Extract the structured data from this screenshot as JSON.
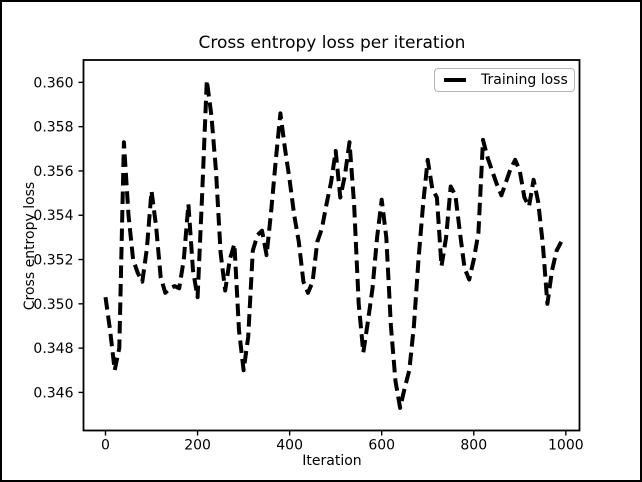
{
  "chart_data": {
    "type": "line",
    "title": "Cross entropy loss per iteration",
    "xlabel": "Iteration",
    "ylabel": "Cross entropy loss",
    "grid": false,
    "xlim": [
      -47.8,
      1029.7
    ],
    "ylim": [
      0.34428,
      0.36101
    ],
    "xticks": [
      0,
      200,
      400,
      600,
      800,
      1000
    ],
    "yticks": [
      0.346,
      0.348,
      0.35,
      0.352,
      0.354,
      0.356,
      0.358,
      0.36
    ],
    "ytick_decimals": 3,
    "legend": {
      "label": "Training loss",
      "position": "upper right"
    },
    "line_color": "#000000",
    "line_style": "dashed",
    "line_width": 4,
    "background_color": "#ffffff",
    "spine_color": "#000000",
    "series": [
      {
        "name": "Training loss",
        "x": [
          0,
          10,
          20,
          30,
          40,
          50,
          60,
          70,
          80,
          90,
          100,
          110,
          120,
          130,
          140,
          150,
          160,
          170,
          180,
          190,
          200,
          210,
          220,
          230,
          240,
          250,
          260,
          270,
          280,
          290,
          300,
          310,
          320,
          330,
          340,
          350,
          360,
          370,
          380,
          390,
          400,
          410,
          420,
          430,
          440,
          450,
          460,
          470,
          480,
          490,
          500,
          510,
          520,
          530,
          540,
          550,
          560,
          570,
          580,
          590,
          600,
          610,
          620,
          630,
          640,
          650,
          660,
          670,
          680,
          690,
          700,
          710,
          720,
          730,
          740,
          750,
          760,
          770,
          780,
          790,
          800,
          810,
          820,
          830,
          840,
          850,
          860,
          870,
          880,
          890,
          900,
          910,
          920,
          930,
          940,
          950,
          960,
          970,
          980,
          990
        ],
        "y": [
          0.3503,
          0.3488,
          0.347,
          0.348,
          0.3573,
          0.354,
          0.352,
          0.3514,
          0.351,
          0.3525,
          0.3551,
          0.3535,
          0.3512,
          0.3505,
          0.3507,
          0.3508,
          0.3507,
          0.352,
          0.3545,
          0.3515,
          0.3503,
          0.355,
          0.3601,
          0.3585,
          0.356,
          0.3523,
          0.3506,
          0.352,
          0.3527,
          0.3488,
          0.347,
          0.3485,
          0.3524,
          0.3531,
          0.3533,
          0.3522,
          0.3542,
          0.3565,
          0.3586,
          0.357,
          0.3556,
          0.354,
          0.3528,
          0.351,
          0.3505,
          0.351,
          0.3528,
          0.3534,
          0.3545,
          0.3555,
          0.3569,
          0.3548,
          0.3558,
          0.3573,
          0.3545,
          0.35,
          0.3478,
          0.3492,
          0.3507,
          0.353,
          0.3547,
          0.353,
          0.349,
          0.3465,
          0.3453,
          0.3462,
          0.347,
          0.349,
          0.352,
          0.3545,
          0.3565,
          0.3552,
          0.3548,
          0.3517,
          0.353,
          0.3553,
          0.3549,
          0.3532,
          0.3516,
          0.3511,
          0.352,
          0.3532,
          0.3574,
          0.3566,
          0.356,
          0.3554,
          0.3549,
          0.3555,
          0.3561,
          0.3565,
          0.356,
          0.3548,
          0.3544,
          0.3556,
          0.3546,
          0.3527,
          0.35,
          0.3515,
          0.3524,
          0.3528
        ]
      }
    ]
  }
}
